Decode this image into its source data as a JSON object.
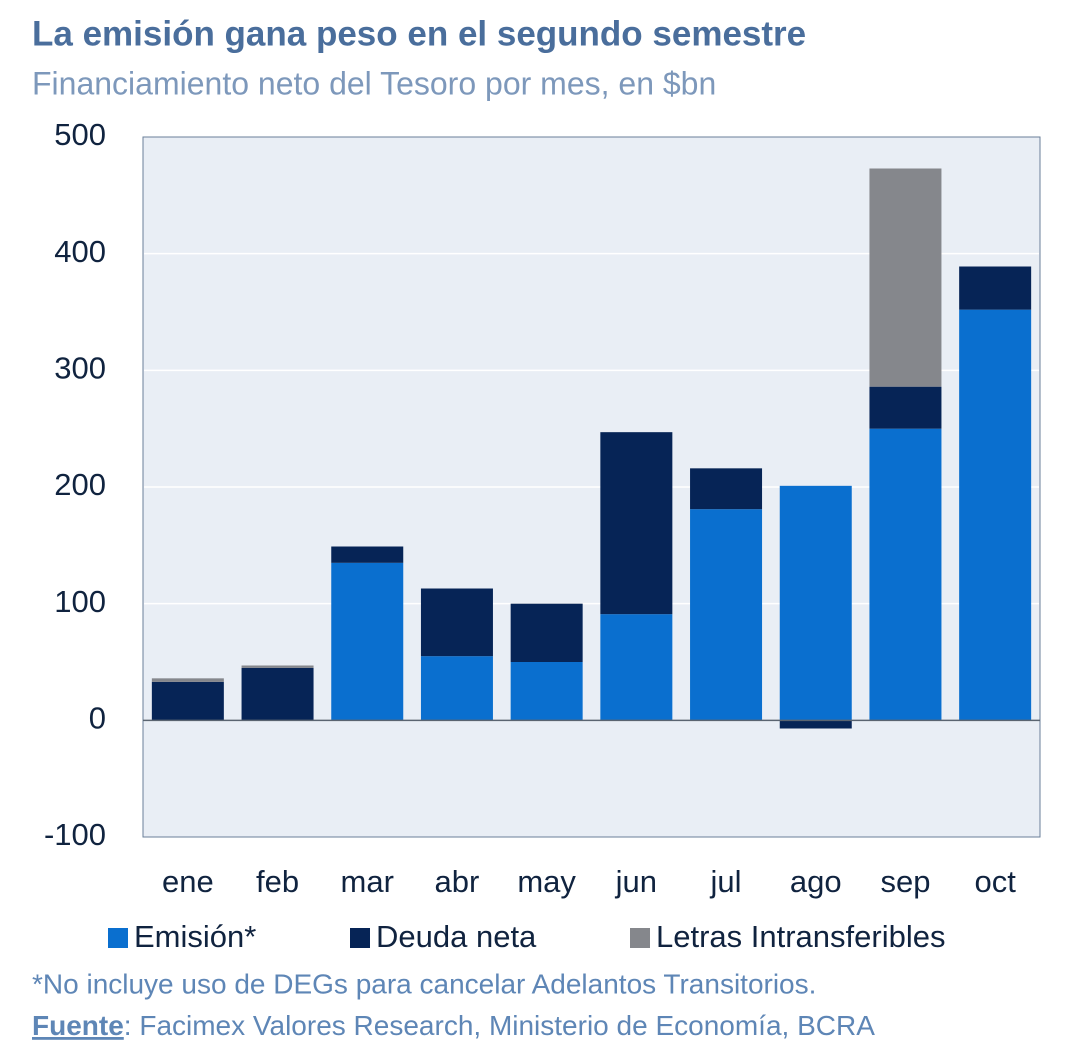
{
  "chart_data": {
    "type": "stacked_bar",
    "title": "La emisión gana peso en el segundo semestre",
    "subtitle": "Financiamiento neto del Tesoro por mes, en $bn",
    "categories": [
      "ene",
      "feb",
      "mar",
      "abr",
      "may",
      "jun",
      "jul",
      "ago",
      "sep",
      "oct"
    ],
    "series": [
      {
        "name": "Emisión*",
        "color": "#0a6fcf",
        "values": [
          0,
          0,
          135,
          55,
          50,
          91,
          181,
          201,
          250,
          352
        ]
      },
      {
        "name": "Deuda neta",
        "color": "#062456",
        "values": [
          33,
          45,
          14,
          58,
          50,
          156,
          35,
          -7,
          36,
          37
        ]
      },
      {
        "name": "Letras Intransferibles",
        "color": "#85878c",
        "values": [
          3,
          2,
          0,
          0,
          0,
          0,
          0,
          0,
          187,
          0
        ]
      }
    ],
    "ylim": [
      -100,
      500
    ],
    "yticks": [
      -100,
      0,
      100,
      200,
      300,
      400,
      500
    ],
    "grid": true,
    "note": "*No incluye uso de DEGs para cancelar Adelantos Transitorios.",
    "source_label": "Fuente",
    "source_text": ": Facimex Valores Research, Ministerio de Economía, BCRA"
  }
}
